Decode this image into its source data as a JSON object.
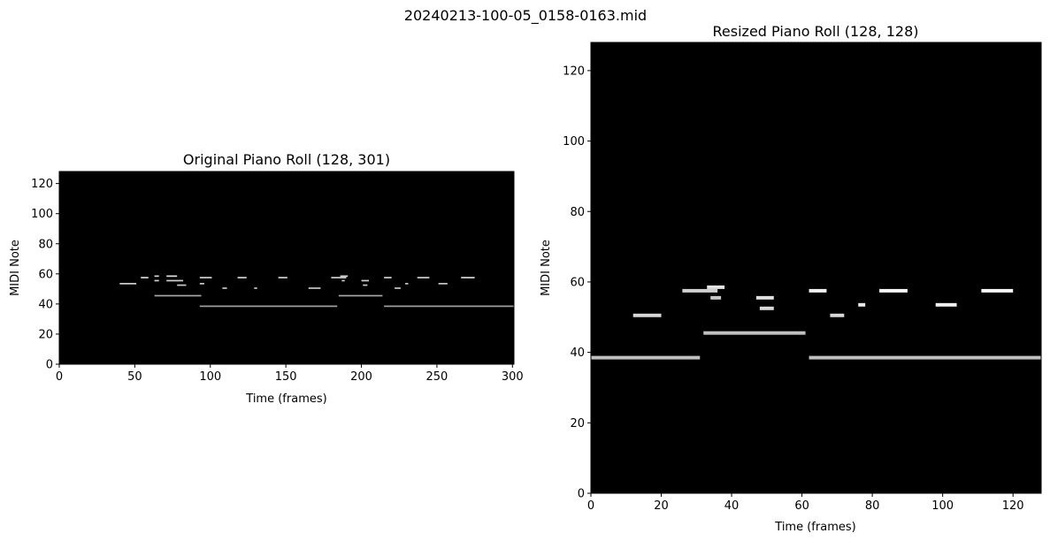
{
  "figure": {
    "suptitle": "20240213-100-05_0158-0163.mid"
  },
  "chart_data": [
    {
      "type": "heatmap",
      "title": "Original Piano Roll (128, 301)",
      "xlabel": "Time (frames)",
      "ylabel": "MIDI Note",
      "xlim": [
        0,
        301
      ],
      "ylim": [
        0,
        128
      ],
      "xticks": [
        0,
        50,
        100,
        150,
        200,
        250,
        300
      ],
      "yticks": [
        0,
        20,
        40,
        60,
        80,
        100,
        120
      ],
      "background": "#000000",
      "notes": [
        {
          "start": 40,
          "end": 51,
          "pitch": 53,
          "color": "#d0d0d0"
        },
        {
          "start": 54,
          "end": 59,
          "pitch": 57,
          "color": "#d8d8d8"
        },
        {
          "start": 63,
          "end": 66,
          "pitch": 58,
          "color": "#d8d8d8"
        },
        {
          "start": 63,
          "end": 66,
          "pitch": 55,
          "color": "#d0d0d0"
        },
        {
          "start": 63,
          "end": 94,
          "pitch": 45,
          "color": "#a8a8a8"
        },
        {
          "start": 71,
          "end": 78,
          "pitch": 58,
          "color": "#e0e0e0"
        },
        {
          "start": 71,
          "end": 82,
          "pitch": 55,
          "color": "#d0d0d0"
        },
        {
          "start": 78,
          "end": 84,
          "pitch": 52,
          "color": "#c8c8c8"
        },
        {
          "start": 93,
          "end": 184,
          "pitch": 38,
          "color": "#a0a0a0"
        },
        {
          "start": 93,
          "end": 101,
          "pitch": 57,
          "color": "#d0d0d0"
        },
        {
          "start": 93,
          "end": 96,
          "pitch": 53,
          "color": "#c8c8c8"
        },
        {
          "start": 108,
          "end": 111,
          "pitch": 50,
          "color": "#c8c8c8"
        },
        {
          "start": 118,
          "end": 124,
          "pitch": 57,
          "color": "#d0d0d0"
        },
        {
          "start": 129,
          "end": 131,
          "pitch": 50,
          "color": "#c8c8c8"
        },
        {
          "start": 145,
          "end": 151,
          "pitch": 57,
          "color": "#d0d0d0"
        },
        {
          "start": 165,
          "end": 173,
          "pitch": 50,
          "color": "#c8c8c8"
        },
        {
          "start": 180,
          "end": 190,
          "pitch": 57,
          "color": "#d0d0d0"
        },
        {
          "start": 186,
          "end": 191,
          "pitch": 58,
          "color": "#d8d8d8"
        },
        {
          "start": 187,
          "end": 189,
          "pitch": 55,
          "color": "#c8c8c8"
        },
        {
          "start": 185,
          "end": 214,
          "pitch": 45,
          "color": "#a8a8a8"
        },
        {
          "start": 200,
          "end": 205,
          "pitch": 55,
          "color": "#d0d0d0"
        },
        {
          "start": 201,
          "end": 204,
          "pitch": 52,
          "color": "#c8c8c8"
        },
        {
          "start": 215,
          "end": 301,
          "pitch": 38,
          "color": "#a0a0a0"
        },
        {
          "start": 215,
          "end": 220,
          "pitch": 57,
          "color": "#d0d0d0"
        },
        {
          "start": 222,
          "end": 226,
          "pitch": 50,
          "color": "#c8c8c8"
        },
        {
          "start": 229,
          "end": 231,
          "pitch": 53,
          "color": "#c8c8c8"
        },
        {
          "start": 237,
          "end": 245,
          "pitch": 57,
          "color": "#d0d0d0"
        },
        {
          "start": 251,
          "end": 257,
          "pitch": 53,
          "color": "#c8c8c8"
        },
        {
          "start": 266,
          "end": 275,
          "pitch": 57,
          "color": "#d8d8d8"
        }
      ]
    },
    {
      "type": "heatmap",
      "title": "Resized Piano Roll (128, 128)",
      "xlabel": "Time (frames)",
      "ylabel": "MIDI Note",
      "xlim": [
        0,
        128
      ],
      "ylim": [
        0,
        128
      ],
      "xticks": [
        0,
        20,
        40,
        60,
        80,
        100,
        120
      ],
      "yticks": [
        0,
        20,
        40,
        60,
        80,
        100,
        120
      ],
      "background": "#000000",
      "notes": [
        {
          "start": 0,
          "end": 31,
          "pitch": 38,
          "color": "#c0c0c0"
        },
        {
          "start": 12,
          "end": 20,
          "pitch": 50,
          "color": "#d8d8d8"
        },
        {
          "start": 26,
          "end": 36,
          "pitch": 57,
          "color": "#d0d0d0"
        },
        {
          "start": 33,
          "end": 38,
          "pitch": 58,
          "color": "#e4e4e4"
        },
        {
          "start": 34,
          "end": 37,
          "pitch": 55,
          "color": "#c8c8c8"
        },
        {
          "start": 32,
          "end": 61,
          "pitch": 45,
          "color": "#c0c0c0"
        },
        {
          "start": 47,
          "end": 52,
          "pitch": 55,
          "color": "#e0e0e0"
        },
        {
          "start": 48,
          "end": 52,
          "pitch": 52,
          "color": "#d8d8d8"
        },
        {
          "start": 62,
          "end": 67,
          "pitch": 57,
          "color": "#f0f0f0"
        },
        {
          "start": 62,
          "end": 128,
          "pitch": 38,
          "color": "#c0c0c0"
        },
        {
          "start": 68,
          "end": 72,
          "pitch": 50,
          "color": "#d8d8d8"
        },
        {
          "start": 76,
          "end": 78,
          "pitch": 53,
          "color": "#e8e8e8"
        },
        {
          "start": 82,
          "end": 90,
          "pitch": 57,
          "color": "#f8f8f8"
        },
        {
          "start": 98,
          "end": 104,
          "pitch": 53,
          "color": "#f0f0f0"
        },
        {
          "start": 111,
          "end": 120,
          "pitch": 57,
          "color": "#f8f8f8"
        }
      ]
    }
  ]
}
